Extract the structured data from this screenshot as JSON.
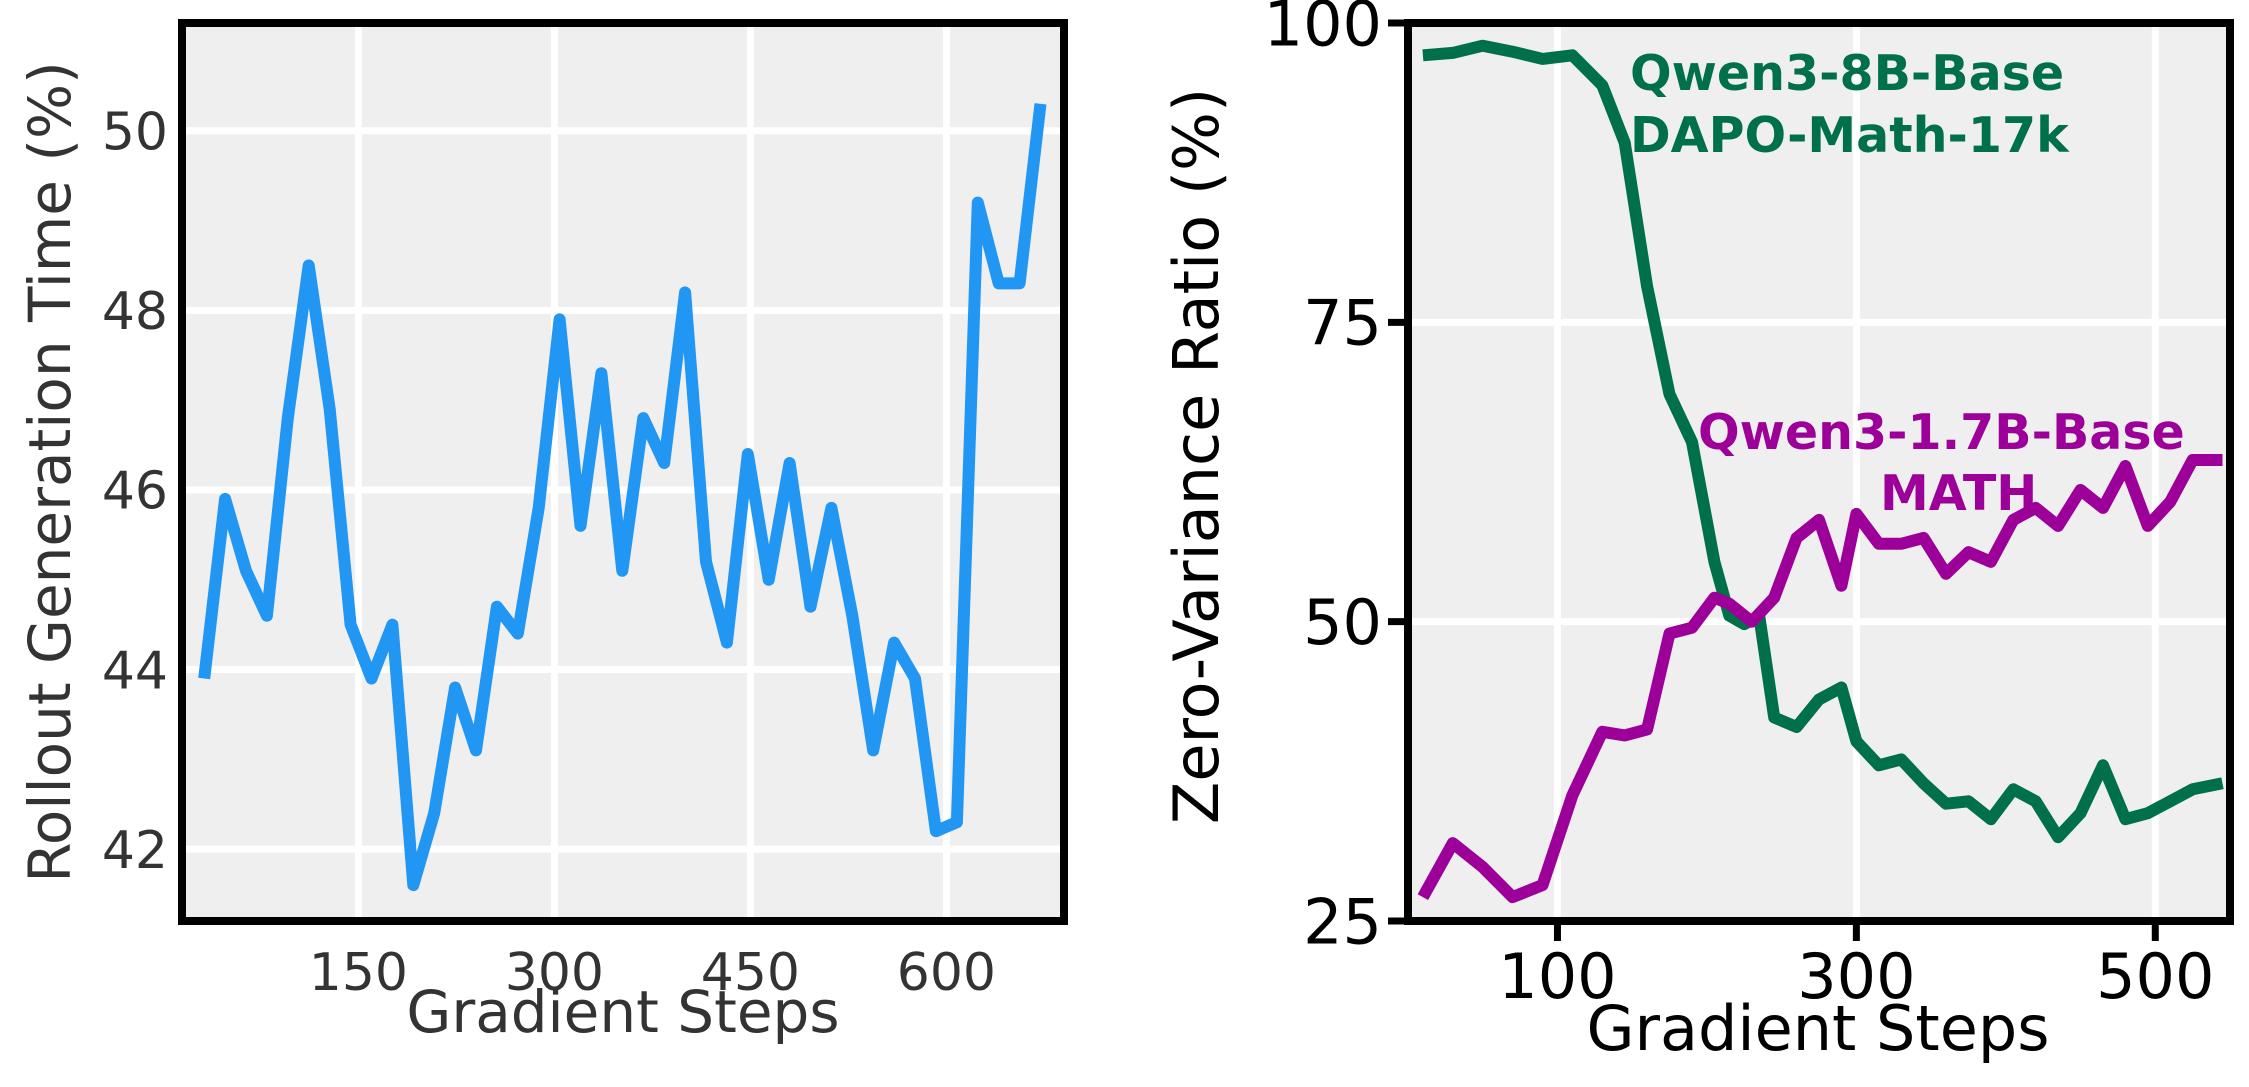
{
  "colors": {
    "panel_bg": "#efefef",
    "grid": "#ffffff",
    "frame": "#000000",
    "left_tick": "#333333",
    "series_blue": "#2196f3",
    "series_green": "#00704a",
    "series_purple": "#9c0099"
  },
  "chart_data": [
    {
      "type": "line",
      "xlabel": "Gradient Steps",
      "ylabel": "Rollout Generation Time (%)",
      "xlim": [
        15,
        690
      ],
      "ylim": [
        41.2,
        51.2
      ],
      "xticks": [
        150,
        300,
        450,
        600
      ],
      "yticks": [
        42,
        44,
        46,
        48,
        50
      ],
      "grid": true,
      "series": [
        {
          "x": [
            32,
            48,
            64,
            80,
            96,
            112,
            128,
            144,
            160,
            176,
            192,
            208,
            224,
            240,
            256,
            272,
            288,
            304,
            320,
            336,
            352,
            368,
            384,
            400,
            416,
            432,
            448,
            464,
            480,
            496,
            512,
            528,
            544,
            560,
            576,
            592,
            608,
            624,
            640,
            656,
            672
          ],
          "y": [
            43.9,
            45.9,
            45.1,
            44.6,
            46.8,
            48.5,
            46.9,
            44.5,
            43.9,
            44.5,
            41.6,
            42.4,
            43.8,
            43.1,
            44.7,
            44.4,
            45.8,
            47.9,
            45.6,
            47.3,
            45.1,
            46.8,
            46.3,
            48.2,
            45.2,
            44.3,
            46.4,
            45.0,
            46.3,
            44.7,
            45.8,
            44.6,
            43.1,
            44.3,
            43.9,
            42.2,
            42.3,
            49.2,
            48.3,
            48.3,
            50.3
          ]
        }
      ]
    },
    {
      "type": "line",
      "xlabel": "Gradient Steps",
      "ylabel": "Zero-Variance Ratio (%)",
      "xlim": [
        0,
        550
      ],
      "ylim": [
        25,
        100
      ],
      "xticks": [
        100,
        300,
        500
      ],
      "yticks": [
        25,
        50,
        75,
        100
      ],
      "grid": true,
      "annotations": [
        {
          "lines": [
            "Qwen3-8B-Base",
            "DAPO-Math-17k"
          ],
          "color": "series_green"
        },
        {
          "lines": [
            "Qwen3-1.7B-Base",
            "MATH"
          ],
          "color": "series_purple"
        }
      ],
      "series": [
        {
          "color": "series_green",
          "x": [
            10,
            30,
            50,
            70,
            90,
            110,
            130,
            145,
            160,
            175,
            190,
            205,
            215,
            225,
            235,
            245,
            260,
            275,
            290,
            300,
            315,
            330,
            345,
            360,
            375,
            390,
            405,
            420,
            435,
            450,
            465,
            480,
            495,
            510,
            525,
            545
          ],
          "y": [
            97.3,
            97.5,
            98.1,
            97.6,
            97.0,
            97.3,
            94.8,
            90.0,
            78.0,
            69.0,
            65.0,
            55.0,
            50.5,
            49.8,
            50.5,
            42.0,
            41.2,
            43.5,
            44.5,
            40.0,
            38.0,
            38.5,
            36.5,
            34.8,
            35.0,
            33.5,
            36.0,
            35.0,
            32.0,
            34.0,
            38.0,
            33.5,
            34.0,
            35.0,
            36.0,
            36.5
          ]
        },
        {
          "color": "series_purple",
          "x": [
            10,
            30,
            50,
            70,
            90,
            110,
            130,
            145,
            160,
            175,
            190,
            205,
            215,
            230,
            245,
            260,
            275,
            290,
            300,
            315,
            330,
            345,
            360,
            375,
            390,
            405,
            420,
            435,
            450,
            465,
            480,
            495,
            510,
            525,
            545
          ],
          "y": [
            27.0,
            31.5,
            29.5,
            27.0,
            28.0,
            35.5,
            40.8,
            40.5,
            41.0,
            49.0,
            49.5,
            52.0,
            51.5,
            50.0,
            52.0,
            57.0,
            58.5,
            53.0,
            59.0,
            56.5,
            56.5,
            57.0,
            54.0,
            55.8,
            55.0,
            58.5,
            59.5,
            58.0,
            61.0,
            59.5,
            63.0,
            58.0,
            60.0,
            63.5,
            63.5
          ]
        }
      ]
    }
  ]
}
